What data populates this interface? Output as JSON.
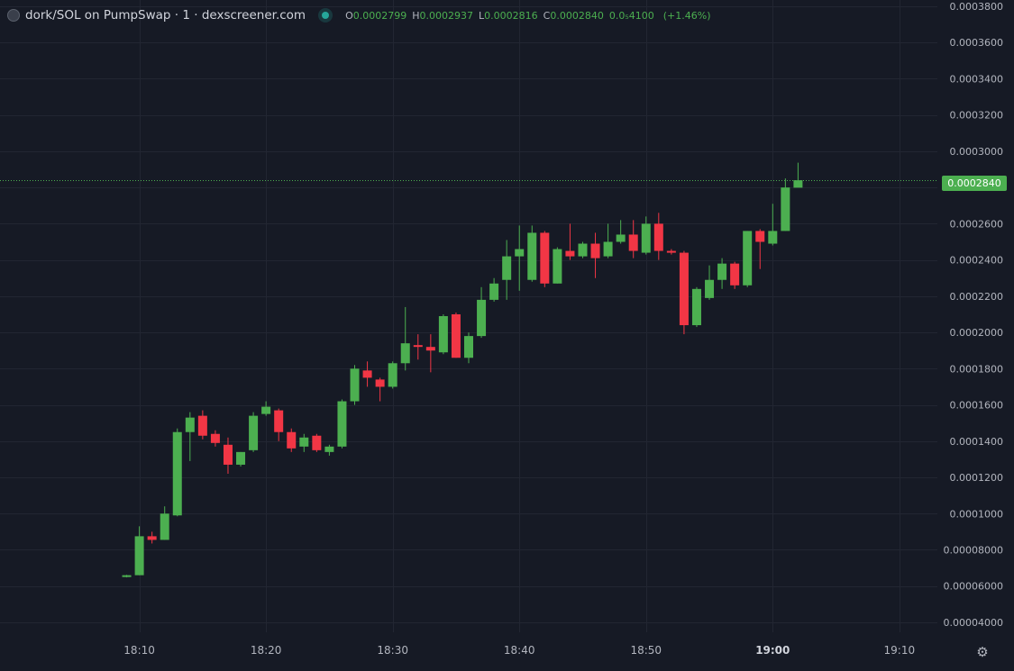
{
  "header": {
    "title": "dork/SOL on PumpSwap · 1 · dexscreener.com",
    "ohlc": {
      "o_label": "O",
      "o_value": "0.0002799",
      "h_label": "H",
      "h_value": "0.0002937",
      "l_label": "L",
      "l_value": "0.0002816",
      "c_label": "C",
      "c_value": "0.0002840",
      "change_abs": "0.0₅4100",
      "change_pct": "(+1.46%)"
    }
  },
  "price_tag": "0.0002840",
  "colors": {
    "background": "#161a25",
    "grid": "#222632",
    "up": "#4caf50",
    "down": "#f23645",
    "axis_text": "#b2b5be",
    "last_price_line": "#4caf50"
  },
  "icons": {
    "settings": "gear-icon",
    "logo": "token-logo-icon",
    "status": "live-dot-icon"
  },
  "chart_data": {
    "type": "candlestick",
    "y_tick_labels": [
      "0.00004000",
      "0.00006000",
      "0.00008000",
      "0.0001000",
      "0.0001200",
      "0.0001400",
      "0.0001600",
      "0.0001800",
      "0.0002000",
      "0.0002200",
      "0.0002400",
      "0.0002600",
      "0.0002800",
      "0.0003000",
      "0.0003200",
      "0.0003400",
      "0.0003600",
      "0.0003800"
    ],
    "y_tick_values": [
      4e-05,
      6e-05,
      8e-05,
      0.0001,
      0.00012,
      0.00014,
      0.00016,
      0.00018,
      0.0002,
      0.00022,
      0.00024,
      0.00026,
      0.00028,
      0.0003,
      0.00032,
      0.00034,
      0.00036,
      0.00038
    ],
    "ylim": [
      3.55e-05,
      0.00038
    ],
    "x_tick_labels": [
      "18:10",
      "18:20",
      "18:30",
      "18:40",
      "18:50",
      "19:00",
      "19:10"
    ],
    "x_tick_minutes": [
      1090,
      1100,
      1110,
      1120,
      1130,
      1140,
      1150
    ],
    "xlim_minutes": [
      1079.0,
      1153.0
    ],
    "x_tick_bold": "19:00",
    "last_price": 0.000284,
    "grid": true,
    "candles": [
      {
        "t": 1089,
        "o": 6.5e-05,
        "h": 6.62e-05,
        "l": 6.48e-05,
        "c": 6.6e-05
      },
      {
        "t": 1090,
        "o": 6.6e-05,
        "h": 9.3e-05,
        "l": 6.6e-05,
        "c": 8.75e-05
      },
      {
        "t": 1091,
        "o": 8.75e-05,
        "h": 9e-05,
        "l": 8.35e-05,
        "c": 8.55e-05
      },
      {
        "t": 1092,
        "o": 8.55e-05,
        "h": 0.000104,
        "l": 8.55e-05,
        "c": 0.0001
      },
      {
        "t": 1093,
        "o": 9.9e-05,
        "h": 0.000147,
        "l": 9.85e-05,
        "c": 0.000145
      },
      {
        "t": 1094,
        "o": 0.000145,
        "h": 0.000156,
        "l": 0.000129,
        "c": 0.000153
      },
      {
        "t": 1095,
        "o": 0.000154,
        "h": 0.000157,
        "l": 0.000141,
        "c": 0.000143
      },
      {
        "t": 1096,
        "o": 0.000144,
        "h": 0.000146,
        "l": 0.000137,
        "c": 0.000139
      },
      {
        "t": 1097,
        "o": 0.000138,
        "h": 0.000142,
        "l": 0.000122,
        "c": 0.000127
      },
      {
        "t": 1098,
        "o": 0.000127,
        "h": 0.000134,
        "l": 0.000126,
        "c": 0.000134
      },
      {
        "t": 1099,
        "o": 0.000135,
        "h": 0.000156,
        "l": 0.000134,
        "c": 0.000154
      },
      {
        "t": 1100,
        "o": 0.000155,
        "h": 0.000162,
        "l": 0.000154,
        "c": 0.000159
      },
      {
        "t": 1101,
        "o": 0.000157,
        "h": 0.000158,
        "l": 0.00014,
        "c": 0.000145
      },
      {
        "t": 1102,
        "o": 0.000145,
        "h": 0.000147,
        "l": 0.000134,
        "c": 0.000136
      },
      {
        "t": 1103,
        "o": 0.000137,
        "h": 0.000144,
        "l": 0.000134,
        "c": 0.000142
      },
      {
        "t": 1104,
        "o": 0.000143,
        "h": 0.000144,
        "l": 0.000134,
        "c": 0.000135
      },
      {
        "t": 1105,
        "o": 0.000134,
        "h": 0.000138,
        "l": 0.000132,
        "c": 0.000137
      },
      {
        "t": 1106,
        "o": 0.000137,
        "h": 0.000163,
        "l": 0.000136,
        "c": 0.000162
      },
      {
        "t": 1107,
        "o": 0.000162,
        "h": 0.000182,
        "l": 0.00016,
        "c": 0.00018
      },
      {
        "t": 1108,
        "o": 0.000179,
        "h": 0.000184,
        "l": 0.00017,
        "c": 0.000175
      },
      {
        "t": 1109,
        "o": 0.000174,
        "h": 0.000175,
        "l": 0.000162,
        "c": 0.00017
      },
      {
        "t": 1110,
        "o": 0.00017,
        "h": 0.000184,
        "l": 0.000169,
        "c": 0.000183
      },
      {
        "t": 1111,
        "o": 0.000183,
        "h": 0.000214,
        "l": 0.000179,
        "c": 0.000194
      },
      {
        "t": 1112,
        "o": 0.000193,
        "h": 0.000199,
        "l": 0.000185,
        "c": 0.000192
      },
      {
        "t": 1113,
        "o": 0.000192,
        "h": 0.000199,
        "l": 0.000178,
        "c": 0.00019
      },
      {
        "t": 1114,
        "o": 0.000189,
        "h": 0.00021,
        "l": 0.000188,
        "c": 0.000209
      },
      {
        "t": 1115,
        "o": 0.00021,
        "h": 0.000211,
        "l": 0.000186,
        "c": 0.000186
      },
      {
        "t": 1116,
        "o": 0.000186,
        "h": 0.0002,
        "l": 0.000183,
        "c": 0.000198
      },
      {
        "t": 1117,
        "o": 0.000198,
        "h": 0.000225,
        "l": 0.000197,
        "c": 0.000218
      },
      {
        "t": 1118,
        "o": 0.000218,
        "h": 0.00023,
        "l": 0.000217,
        "c": 0.000227
      },
      {
        "t": 1119,
        "o": 0.000229,
        "h": 0.000251,
        "l": 0.000218,
        "c": 0.000242
      },
      {
        "t": 1120,
        "o": 0.000242,
        "h": 0.000259,
        "l": 0.000223,
        "c": 0.000246
      },
      {
        "t": 1121,
        "o": 0.000229,
        "h": 0.000259,
        "l": 0.000228,
        "c": 0.000255
      },
      {
        "t": 1122,
        "o": 0.000255,
        "h": 0.000256,
        "l": 0.000225,
        "c": 0.000227
      },
      {
        "t": 1123,
        "o": 0.000227,
        "h": 0.000247,
        "l": 0.000227,
        "c": 0.000246
      },
      {
        "t": 1124,
        "o": 0.000245,
        "h": 0.00026,
        "l": 0.00024,
        "c": 0.000242
      },
      {
        "t": 1125,
        "o": 0.000242,
        "h": 0.00025,
        "l": 0.000241,
        "c": 0.000249
      },
      {
        "t": 1126,
        "o": 0.000249,
        "h": 0.000255,
        "l": 0.00023,
        "c": 0.000241
      },
      {
        "t": 1127,
        "o": 0.000242,
        "h": 0.00026,
        "l": 0.000241,
        "c": 0.00025
      },
      {
        "t": 1128,
        "o": 0.00025,
        "h": 0.000262,
        "l": 0.000249,
        "c": 0.000254
      },
      {
        "t": 1129,
        "o": 0.000254,
        "h": 0.000262,
        "l": 0.000241,
        "c": 0.000245
      },
      {
        "t": 1130,
        "o": 0.000244,
        "h": 0.000264,
        "l": 0.000243,
        "c": 0.00026
      },
      {
        "t": 1131,
        "o": 0.00026,
        "h": 0.000266,
        "l": 0.00024,
        "c": 0.000245
      },
      {
        "t": 1132,
        "o": 0.000245,
        "h": 0.000246,
        "l": 0.000243,
        "c": 0.000244
      },
      {
        "t": 1133,
        "o": 0.000244,
        "h": 0.000245,
        "l": 0.000199,
        "c": 0.000204
      },
      {
        "t": 1134,
        "o": 0.000204,
        "h": 0.000225,
        "l": 0.000203,
        "c": 0.000224
      },
      {
        "t": 1135,
        "o": 0.000219,
        "h": 0.000237,
        "l": 0.000218,
        "c": 0.000229
      },
      {
        "t": 1136,
        "o": 0.000229,
        "h": 0.000241,
        "l": 0.000224,
        "c": 0.000238
      },
      {
        "t": 1137,
        "o": 0.000238,
        "h": 0.000239,
        "l": 0.000224,
        "c": 0.000226
      },
      {
        "t": 1138,
        "o": 0.000226,
        "h": 0.000256,
        "l": 0.000225,
        "c": 0.000256
      },
      {
        "t": 1139,
        "o": 0.000256,
        "h": 0.000257,
        "l": 0.000235,
        "c": 0.00025
      },
      {
        "t": 1140,
        "o": 0.000249,
        "h": 0.000271,
        "l": 0.000248,
        "c": 0.000256
      },
      {
        "t": 1141,
        "o": 0.000256,
        "h": 0.000285,
        "l": 0.000256,
        "c": 0.00028
      },
      {
        "t": 1142,
        "o": 0.0002799,
        "h": 0.0002937,
        "l": 0.0002816,
        "c": 0.000284
      }
    ]
  }
}
